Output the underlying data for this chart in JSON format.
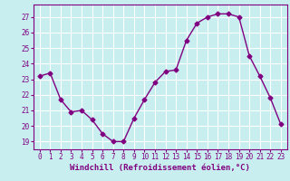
{
  "x": [
    0,
    1,
    2,
    3,
    4,
    5,
    6,
    7,
    8,
    9,
    10,
    11,
    12,
    13,
    14,
    15,
    16,
    17,
    18,
    19,
    20,
    21,
    22,
    23
  ],
  "y": [
    23.2,
    23.4,
    21.7,
    20.9,
    21.0,
    20.4,
    19.5,
    19.0,
    19.0,
    20.5,
    21.7,
    22.8,
    23.5,
    23.6,
    25.5,
    26.6,
    27.0,
    27.2,
    27.2,
    27.0,
    24.5,
    23.2,
    21.8,
    20.1
  ],
  "line_color": "#800080",
  "marker": "D",
  "marker_size": 2.5,
  "bg_color": "#c8eef0",
  "grid_color": "#ffffff",
  "xlabel": "Windchill (Refroidissement éolien,°C)",
  "ylabel": "",
  "ylim": [
    18.5,
    27.8
  ],
  "yticks": [
    19,
    20,
    21,
    22,
    23,
    24,
    25,
    26,
    27
  ],
  "xticks": [
    0,
    1,
    2,
    3,
    4,
    5,
    6,
    7,
    8,
    9,
    10,
    11,
    12,
    13,
    14,
    15,
    16,
    17,
    18,
    19,
    20,
    21,
    22,
    23
  ],
  "title": "",
  "font_color": "#800080",
  "line_width": 1.0,
  "tick_fontsize": 5.5,
  "xlabel_fontsize": 6.5,
  "xlabel_fontweight": "bold"
}
